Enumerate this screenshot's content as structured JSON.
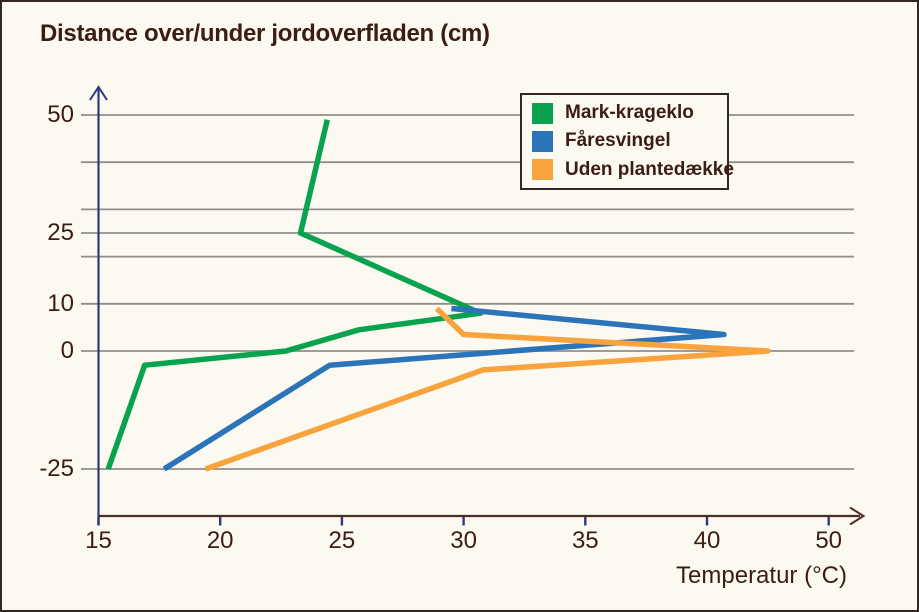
{
  "title": "Distance over/under jordoverfladen (cm)",
  "x_axis_label": "Temperatur (°C)",
  "colors": {
    "background": "#fcf9f1",
    "border": "#33251f",
    "text": "#3b1d13",
    "gridline": "#908e8b",
    "y_axis": "#2e3a80",
    "x_axis": "#4b2f26"
  },
  "chart_data": {
    "type": "line",
    "title": "Distance over/under jordoverfladen (cm)",
    "xlabel": "Temperatur (°C)",
    "ylabel": "Distance over/under jordoverfladen (cm)",
    "grid": true,
    "legend_position": "top-right",
    "x_tick_labels": [
      "15",
      "20",
      "25",
      "30",
      "35",
      "40",
      "50"
    ],
    "y_tick_labels": [
      {
        "value": 50,
        "label": "50"
      },
      {
        "value": 25,
        "label": "25"
      },
      {
        "value": 10,
        "label": "10"
      },
      {
        "value": 0,
        "label": "0"
      },
      {
        "value": -25,
        "label": "-25"
      }
    ],
    "y_gridlines": [
      50,
      40,
      30,
      25,
      20,
      10,
      0,
      -25
    ],
    "xlim": [
      15,
      46.5
    ],
    "ylim": [
      -30,
      55
    ],
    "series": [
      {
        "name": "Mark-krageklo",
        "color": "#09a24e",
        "points": [
          [
            24.4,
            49
          ],
          [
            23.3,
            25
          ],
          [
            30.7,
            8
          ],
          [
            25.7,
            4.5
          ],
          [
            22.7,
            0
          ],
          [
            16.9,
            -3
          ],
          [
            15.4,
            -25
          ]
        ]
      },
      {
        "name": "Fåresvingel",
        "color": "#2b74b9",
        "points": [
          [
            29.5,
            9
          ],
          [
            40.7,
            3.5
          ],
          [
            24.5,
            -3
          ],
          [
            17.7,
            -25
          ]
        ]
      },
      {
        "name": "Uden plantedække",
        "color": "#f8a33d",
        "points": [
          [
            28.9,
            9
          ],
          [
            30.0,
            3.5
          ],
          [
            42.5,
            0
          ],
          [
            30.8,
            -4
          ],
          [
            19.4,
            -25
          ]
        ]
      }
    ]
  }
}
